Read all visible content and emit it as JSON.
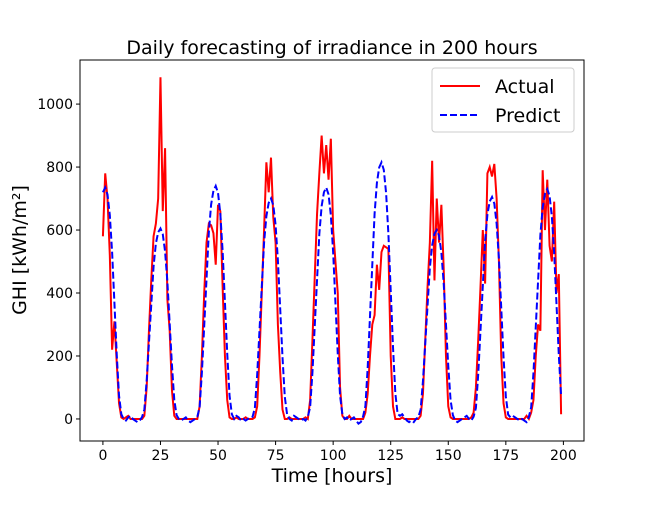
{
  "chart_data": {
    "type": "line",
    "title": "Daily forecasting of irradiance in 200 hours",
    "x_label": "Time [hours]",
    "y_label": "GHI [kWh/m²]",
    "x": [
      0,
      1,
      2,
      3,
      4,
      5,
      6,
      7,
      8,
      9,
      10,
      11,
      12,
      13,
      14,
      15,
      16,
      17,
      18,
      19,
      20,
      21,
      22,
      23,
      24,
      25,
      26,
      27,
      28,
      29,
      30,
      31,
      32,
      33,
      34,
      35,
      36,
      37,
      38,
      39,
      40,
      41,
      42,
      43,
      44,
      45,
      46,
      47,
      48,
      49,
      50,
      51,
      52,
      53,
      54,
      55,
      56,
      57,
      58,
      59,
      60,
      61,
      62,
      63,
      64,
      65,
      66,
      67,
      68,
      69,
      70,
      71,
      72,
      73,
      74,
      75,
      76,
      77,
      78,
      79,
      80,
      81,
      82,
      83,
      84,
      85,
      86,
      87,
      88,
      89,
      90,
      91,
      92,
      93,
      94,
      95,
      96,
      97,
      98,
      99,
      100,
      101,
      102,
      103,
      104,
      105,
      106,
      107,
      108,
      109,
      110,
      111,
      112,
      113,
      114,
      115,
      116,
      117,
      118,
      119,
      120,
      121,
      122,
      123,
      124,
      125,
      126,
      127,
      128,
      129,
      130,
      131,
      132,
      133,
      134,
      135,
      136,
      137,
      138,
      139,
      140,
      141,
      142,
      143,
      144,
      145,
      146,
      147,
      148,
      149,
      150,
      151,
      152,
      153,
      154,
      155,
      156,
      157,
      158,
      159,
      160,
      161,
      162,
      163,
      164,
      165,
      166,
      167,
      168,
      169,
      170,
      171,
      172,
      173,
      174,
      175,
      176,
      177,
      178,
      179,
      180,
      181,
      182,
      183,
      184,
      185,
      186,
      187,
      188,
      189,
      190,
      191,
      192,
      193,
      194,
      195,
      196,
      197,
      198,
      199
    ],
    "series": [
      {
        "name": "Actual",
        "color": "#ff0000",
        "dash": "solid",
        "values": [
          580,
          780,
          700,
          520,
          220,
          310,
          180,
          50,
          5,
          0,
          5,
          10,
          0,
          0,
          0,
          0,
          0,
          0,
          10,
          100,
          280,
          440,
          580,
          620,
          700,
          1085,
          660,
          860,
          380,
          280,
          90,
          10,
          0,
          0,
          0,
          0,
          0,
          0,
          0,
          0,
          0,
          0,
          40,
          200,
          400,
          560,
          620,
          615,
          590,
          490,
          680,
          660,
          420,
          200,
          60,
          5,
          0,
          0,
          5,
          0,
          0,
          0,
          5,
          0,
          0,
          0,
          5,
          40,
          200,
          400,
          600,
          815,
          720,
          830,
          640,
          560,
          300,
          150,
          30,
          0,
          0,
          5,
          0,
          0,
          0,
          0,
          0,
          0,
          5,
          0,
          60,
          250,
          450,
          650,
          780,
          900,
          780,
          870,
          760,
          890,
          600,
          500,
          400,
          100,
          10,
          0,
          0,
          10,
          0,
          0,
          0,
          0,
          0,
          0,
          20,
          80,
          200,
          300,
          330,
          490,
          410,
          530,
          550,
          545,
          540,
          200,
          40,
          0,
          0,
          0,
          5,
          0,
          0,
          0,
          0,
          0,
          0,
          0,
          10,
          80,
          250,
          420,
          560,
          820,
          440,
          700,
          560,
          680,
          480,
          200,
          40,
          5,
          0,
          0,
          0,
          0,
          0,
          0,
          0,
          0,
          5,
          20,
          100,
          250,
          420,
          600,
          430,
          780,
          800,
          770,
          810,
          700,
          500,
          200,
          50,
          5,
          0,
          0,
          0,
          0,
          0,
          0,
          0,
          0,
          10,
          0,
          20,
          60,
          200,
          300,
          280,
          790,
          600,
          760,
          550,
          500,
          690,
          400,
          460,
          15
        ]
      },
      {
        "name": "Predict",
        "color": "#0000ff",
        "dash": "dashed",
        "values": [
          720,
          735,
          713,
          647,
          529,
          368,
          206,
          74,
          15,
          0,
          -5,
          5,
          10,
          0,
          -5,
          -10,
          -5,
          6,
          30,
          121,
          242,
          363,
          484,
          557,
          593,
          605,
          587,
          532,
          436,
          303,
          169,
          61,
          12,
          0,
          -5,
          0,
          5,
          -5,
          -10,
          -5,
          0,
          7,
          37,
          148,
          296,
          444,
          592,
          681,
          725,
          740,
          718,
          651,
          533,
          370,
          207,
          74,
          15,
          0,
          10,
          5,
          -5,
          0,
          -5,
          0,
          5,
          7,
          35,
          140,
          280,
          420,
          560,
          644,
          686,
          700,
          679,
          616,
          504,
          350,
          196,
          70,
          14,
          0,
          -5,
          10,
          5,
          0,
          -5,
          0,
          -5,
          7,
          37,
          147,
          294,
          441,
          588,
          676,
          720,
          735,
          713,
          647,
          529,
          368,
          206,
          74,
          15,
          0,
          5,
          -5,
          0,
          5,
          -5,
          -15,
          -10,
          8,
          41,
          163,
          326,
          489,
          652,
          750,
          799,
          815,
          791,
          717,
          587,
          408,
          228,
          82,
          16,
          10,
          15,
          5,
          -5,
          -10,
          -5,
          -10,
          0,
          6,
          30,
          120,
          240,
          360,
          480,
          552,
          588,
          600,
          582,
          528,
          432,
          300,
          168,
          60,
          12,
          -5,
          -10,
          -5,
          0,
          5,
          10,
          0,
          -5,
          7,
          35,
          141,
          282,
          423,
          564,
          649,
          691,
          705,
          684,
          620,
          508,
          353,
          197,
          71,
          14,
          5,
          10,
          5,
          0,
          -5,
          0,
          -5,
          -10,
          7,
          37,
          146,
          292,
          438,
          584,
          672,
          715,
          730,
          708,
          642,
          526,
          365,
          204,
          73
        ]
      }
    ],
    "xlim": [
      -9.95,
      208.95
    ],
    "ylim": [
      -70,
      1140
    ],
    "xticks": [
      0,
      25,
      50,
      75,
      100,
      125,
      150,
      175,
      200
    ],
    "yticks": [
      0,
      200,
      400,
      600,
      800,
      1000
    ],
    "legend": "upper right"
  }
}
